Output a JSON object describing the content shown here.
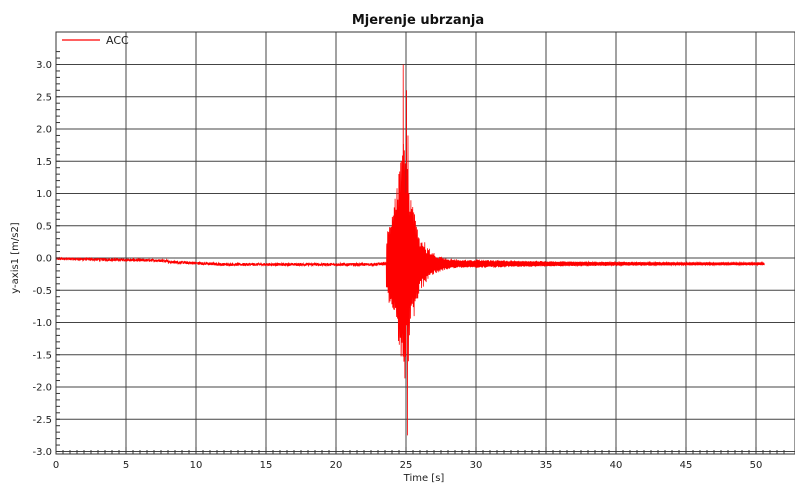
{
  "chart_data": {
    "type": "line",
    "title": "Mjerenje ubrzanja",
    "xlabel": "Time [s]",
    "ylabel": "y-axis1 [m/s2]",
    "xlim": [
      0,
      52
    ],
    "ylim": [
      -3.0,
      3.4
    ],
    "xticks": [
      0,
      5,
      10,
      15,
      20,
      25,
      30,
      35,
      40,
      45,
      50
    ],
    "xtick_labels": [
      "0",
      "5",
      "10",
      "15",
      "20",
      "25",
      "30",
      "35",
      "40",
      "45",
      "50"
    ],
    "yticks": [
      3.0,
      2.5,
      2.0,
      1.5,
      1.0,
      0.5,
      0.0,
      -0.5,
      -1.0,
      -1.5,
      -2.0,
      -2.5,
      -3.0
    ],
    "ytick_labels": [
      "3.0",
      "2.5",
      "2.0",
      "1.5",
      "1.0",
      "0.5",
      "0.0",
      "-0.5",
      "-1.0",
      "-1.5",
      "-2.0",
      "-2.5",
      "-3.0"
    ],
    "grid": true,
    "legend_position": "top-left",
    "series": [
      {
        "name": "ACC",
        "color": "#ff0000",
        "x_start": 0,
        "x_end": 50.6,
        "peak_max": 3.0,
        "peak_max_time": 24.8,
        "peak_min": -2.75,
        "peak_min_time": 25.1,
        "event_start_time": 23.6,
        "baseline": -0.08
      }
    ]
  }
}
